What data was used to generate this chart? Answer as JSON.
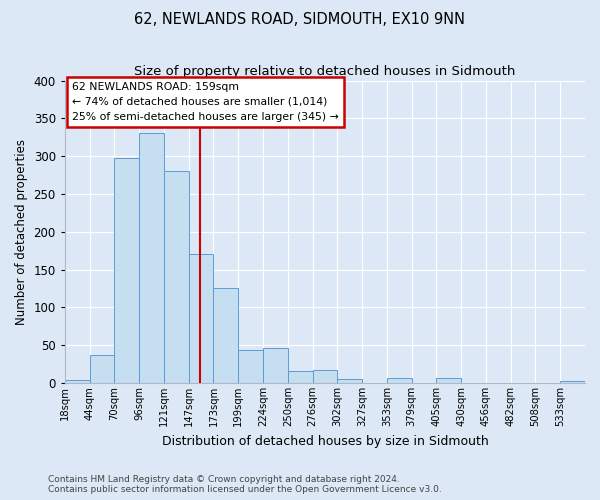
{
  "title": "62, NEWLANDS ROAD, SIDMOUTH, EX10 9NN",
  "subtitle": "Size of property relative to detached houses in Sidmouth",
  "xlabel": "Distribution of detached houses by size in Sidmouth",
  "ylabel": "Number of detached properties",
  "bin_labels": [
    "18sqm",
    "44sqm",
    "70sqm",
    "96sqm",
    "121sqm",
    "147sqm",
    "173sqm",
    "199sqm",
    "224sqm",
    "250sqm",
    "276sqm",
    "302sqm",
    "327sqm",
    "353sqm",
    "379sqm",
    "405sqm",
    "430sqm",
    "456sqm",
    "482sqm",
    "508sqm",
    "533sqm"
  ],
  "bar_heights": [
    4,
    37,
    297,
    330,
    280,
    170,
    125,
    43,
    46,
    16,
    17,
    5,
    0,
    6,
    0,
    7,
    0,
    0,
    0,
    0,
    3
  ],
  "bar_color": "#c5dff0",
  "bar_edge_color": "#5b9bd5",
  "ref_line_color": "#cc0000",
  "annotation_line1": "62 NEWLANDS ROAD: 159sqm",
  "annotation_line2": "← 74% of detached houses are smaller (1,014)",
  "annotation_line3": "25% of semi-detached houses are larger (345) →",
  "annotation_box_edge": "#cc0000",
  "ylim": [
    0,
    400
  ],
  "yticks": [
    0,
    50,
    100,
    150,
    200,
    250,
    300,
    350,
    400
  ],
  "bg_color": "#dce8f5",
  "footer_line1": "Contains HM Land Registry data © Crown copyright and database right 2024.",
  "footer_line2": "Contains public sector information licensed under the Open Government Licence v3.0."
}
